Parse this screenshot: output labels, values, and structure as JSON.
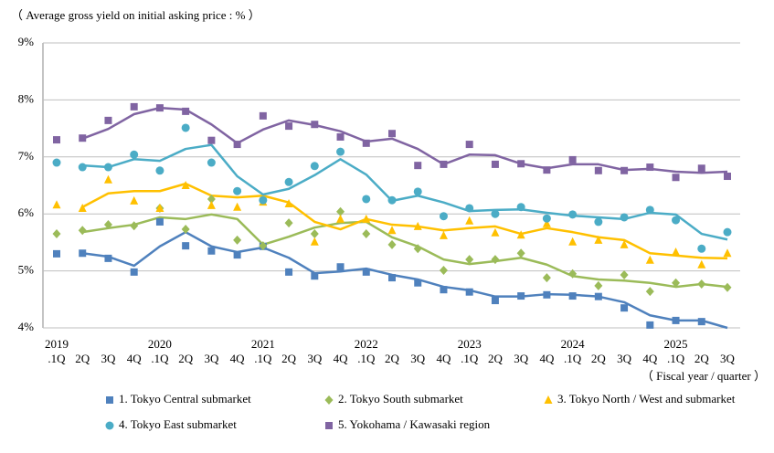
{
  "chart_data": {
    "type": "line",
    "title": "（ Average gross yield on initial asking price : % ）",
    "x_label": "（ Fiscal year / quarter ）",
    "categories": [
      "2019\n.1Q",
      "2Q",
      "3Q",
      "4Q",
      "2020\n.1Q",
      "2Q",
      "3Q",
      "4Q",
      "2021\n.1Q",
      "2Q",
      "3Q",
      "4Q",
      "2022\n.1Q",
      "2Q",
      "3Q",
      "4Q",
      "2023\n.1Q",
      "2Q",
      "3Q",
      "4Q",
      "2024\n.1Q",
      "2Q",
      "3Q",
      "4Q",
      "2025\n.1Q",
      "2Q",
      "3Q"
    ],
    "ylim": [
      4,
      9
    ],
    "yticks": [
      {
        "value": 4,
        "label": "4%"
      },
      {
        "value": 5,
        "label": "5%"
      },
      {
        "value": 6,
        "label": "6%"
      },
      {
        "value": 7,
        "label": "7%"
      },
      {
        "value": 8,
        "label": "8%"
      },
      {
        "value": 9,
        "label": "9%"
      }
    ],
    "grid": true,
    "series": [
      {
        "name": "1. Tokyo Central submarket",
        "color": "#4f81bd",
        "marker": "square",
        "values": [
          5.3,
          5.31,
          5.22,
          4.98,
          5.86,
          5.44,
          5.35,
          5.28,
          5.43,
          4.98,
          4.91,
          5.07,
          4.98,
          4.88,
          4.79,
          4.67,
          4.63,
          4.48,
          4.56,
          4.58,
          4.56,
          4.55,
          4.35,
          4.05,
          4.13,
          4.11,
          null
        ],
        "trend": [
          null,
          5.31,
          5.25,
          5.09,
          5.43,
          5.68,
          5.43,
          5.33,
          5.41,
          5.23,
          4.96,
          4.99,
          5.04,
          4.93,
          4.85,
          4.72,
          4.66,
          4.55,
          4.55,
          4.59,
          4.58,
          4.55,
          4.45,
          4.22,
          4.13,
          4.13,
          4.0
        ]
      },
      {
        "name": "2. Tokyo South submarket",
        "color": "#9bbb59",
        "marker": "diamond",
        "values": [
          5.65,
          5.71,
          5.81,
          5.79,
          6.1,
          5.73,
          6.26,
          5.54,
          5.44,
          5.84,
          5.65,
          6.04,
          5.65,
          5.46,
          5.39,
          5.01,
          5.2,
          5.2,
          5.31,
          4.88,
          4.95,
          4.74,
          4.93,
          4.64,
          4.79,
          4.77,
          4.71
        ],
        "trend": [
          null,
          5.68,
          5.75,
          5.81,
          5.94,
          5.91,
          5.99,
          5.91,
          5.46,
          5.6,
          5.76,
          5.84,
          5.86,
          5.59,
          5.43,
          5.2,
          5.12,
          5.17,
          5.23,
          5.11,
          4.91,
          4.85,
          4.83,
          4.79,
          4.72,
          4.77,
          4.72
        ]
      },
      {
        "name": "3. Tokyo North / West and  submarket",
        "color": "#ffc000",
        "marker": "triangle",
        "values": [
          6.16,
          6.1,
          6.6,
          6.23,
          6.1,
          6.5,
          6.15,
          6.12,
          6.21,
          6.18,
          5.51,
          5.91,
          5.91,
          5.71,
          5.78,
          5.62,
          5.88,
          5.67,
          5.63,
          5.83,
          5.51,
          5.54,
          5.46,
          5.19,
          5.33,
          5.11,
          5.31
        ],
        "trend": [
          null,
          6.12,
          6.36,
          6.4,
          6.4,
          6.53,
          6.32,
          6.29,
          6.32,
          6.2,
          5.86,
          5.73,
          5.91,
          5.81,
          5.78,
          5.71,
          5.75,
          5.78,
          5.65,
          5.75,
          5.68,
          5.59,
          5.54,
          5.31,
          5.27,
          5.23,
          5.22
        ]
      },
      {
        "name": "4. Tokyo East submarket",
        "color": "#4bacc6",
        "marker": "circle",
        "values": [
          6.9,
          6.82,
          6.82,
          7.04,
          6.76,
          7.51,
          6.9,
          6.4,
          6.24,
          6.56,
          6.84,
          7.09,
          6.26,
          6.24,
          6.39,
          5.96,
          6.1,
          6.0,
          6.12,
          5.92,
          5.99,
          5.86,
          5.94,
          6.07,
          5.89,
          5.39,
          5.68
        ],
        "trend": [
          null,
          6.85,
          6.82,
          6.96,
          6.93,
          7.14,
          7.21,
          6.66,
          6.34,
          6.44,
          6.68,
          6.96,
          6.69,
          6.23,
          6.32,
          6.2,
          6.05,
          6.07,
          6.08,
          6.02,
          5.97,
          5.94,
          5.91,
          6.02,
          5.99,
          5.65,
          5.55
        ]
      },
      {
        "name": "5. Yokohama / Kawasaki region",
        "color": "#8064a2",
        "marker": "square",
        "values": [
          7.3,
          7.33,
          7.64,
          7.88,
          7.86,
          7.8,
          7.29,
          7.22,
          7.72,
          7.54,
          7.57,
          7.35,
          7.24,
          7.41,
          6.85,
          6.87,
          7.22,
          6.87,
          6.88,
          6.77,
          6.95,
          6.76,
          6.76,
          6.82,
          6.64,
          6.8,
          6.66
        ],
        "trend": [
          null,
          7.32,
          7.49,
          7.75,
          7.86,
          7.83,
          7.57,
          7.24,
          7.48,
          7.64,
          7.56,
          7.45,
          7.27,
          7.32,
          7.14,
          6.87,
          7.04,
          7.03,
          6.88,
          6.8,
          6.87,
          6.87,
          6.77,
          6.79,
          6.74,
          6.72,
          6.74
        ]
      }
    ]
  }
}
